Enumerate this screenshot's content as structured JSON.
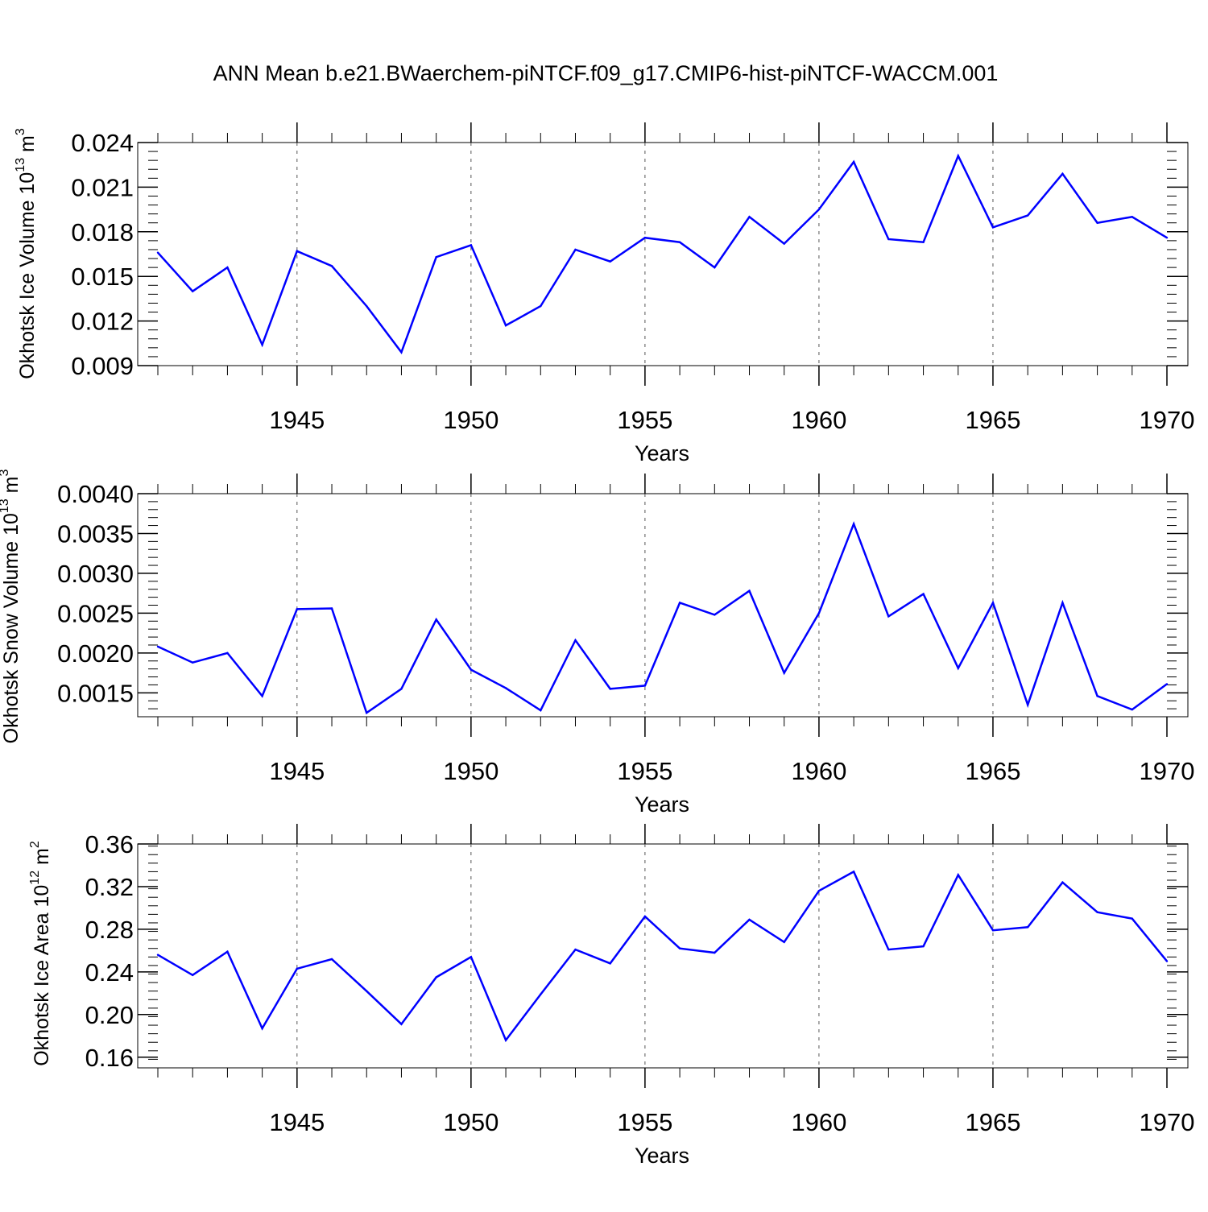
{
  "title": "ANN Mean b.e21.BWaerchem-piNTCF.f09_g17.CMIP6-hist-piNTCF-WACCM.001",
  "line_color": "#0000ff",
  "chart_data": [
    {
      "type": "line",
      "ylabel": {
        "main": "Okhotsk Ice Volume 10",
        "exp": "13",
        "unit": " m",
        "unit_exp": "3"
      },
      "xlabel": "Years",
      "xlim": [
        1941,
        1970
      ],
      "ylim": [
        0.009,
        0.0245
      ],
      "yticks": [
        0.009,
        0.012,
        0.015,
        0.018,
        0.021,
        0.024
      ],
      "ytick_labels": [
        "0.009",
        "0.012",
        "0.015",
        "0.018",
        "0.021",
        "0.024"
      ],
      "xticks": [
        1945,
        1950,
        1955,
        1960,
        1965,
        1970
      ],
      "xtick_labels": [
        "1945",
        "1950",
        "1955",
        "1960",
        "1965",
        "1970"
      ],
      "grid": "dashed vertical at major x ticks",
      "x": [
        1941,
        1942,
        1943,
        1944,
        1945,
        1946,
        1947,
        1948,
        1949,
        1950,
        1951,
        1952,
        1953,
        1954,
        1955,
        1956,
        1957,
        1958,
        1959,
        1960,
        1961,
        1962,
        1963,
        1964,
        1965,
        1966,
        1967,
        1968,
        1969,
        1970
      ],
      "values": [
        0.0166,
        0.014,
        0.0156,
        0.0104,
        0.0167,
        0.0157,
        0.013,
        0.0099,
        0.0163,
        0.0171,
        0.0117,
        0.013,
        0.0168,
        0.016,
        0.0176,
        0.0173,
        0.0156,
        0.019,
        0.0172,
        0.0195,
        0.0227,
        0.0175,
        0.0173,
        0.0231,
        0.0183,
        0.0191,
        0.0219,
        0.0186,
        0.019,
        0.0176
      ]
    },
    {
      "type": "line",
      "ylabel": {
        "main": "Okhotsk Snow Volume 10",
        "exp": "13",
        "unit": " m",
        "unit_exp": "3"
      },
      "xlabel": "Years",
      "xlim": [
        1941,
        1970
      ],
      "ylim": [
        0.0012,
        0.004
      ],
      "yticks": [
        0.0015,
        0.002,
        0.0025,
        0.003,
        0.0035,
        0.004
      ],
      "ytick_labels": [
        "0.0015",
        "0.0020",
        "0.0025",
        "0.0030",
        "0.0035",
        "0.0040"
      ],
      "xticks": [
        1945,
        1950,
        1955,
        1960,
        1965,
        1970
      ],
      "xtick_labels": [
        "1945",
        "1950",
        "1955",
        "1960",
        "1965",
        "1970"
      ],
      "grid": "dashed vertical at major x ticks",
      "x": [
        1941,
        1942,
        1943,
        1944,
        1945,
        1946,
        1947,
        1948,
        1949,
        1950,
        1951,
        1952,
        1953,
        1954,
        1955,
        1956,
        1957,
        1958,
        1959,
        1960,
        1961,
        1962,
        1963,
        1964,
        1965,
        1966,
        1967,
        1968,
        1969,
        1970
      ],
      "values": [
        0.00208,
        0.00188,
        0.002,
        0.00146,
        0.00255,
        0.00256,
        0.00125,
        0.00155,
        0.00242,
        0.00179,
        0.00156,
        0.00128,
        0.00216,
        0.00155,
        0.00159,
        0.00263,
        0.00248,
        0.00278,
        0.00175,
        0.0025,
        0.00362,
        0.00246,
        0.00274,
        0.00181,
        0.00263,
        0.00135,
        0.00263,
        0.00146,
        0.00129,
        0.00161
      ]
    },
    {
      "type": "line",
      "ylabel": {
        "main": "Okhotsk Ice Area 10",
        "exp": "12",
        "unit": " m",
        "unit_exp": "2"
      },
      "xlabel": "Years",
      "xlim": [
        1941,
        1970
      ],
      "ylim": [
        0.15,
        0.36
      ],
      "yticks": [
        0.16,
        0.2,
        0.24,
        0.28,
        0.32,
        0.36
      ],
      "ytick_labels": [
        "0.16",
        "0.20",
        "0.24",
        "0.28",
        "0.32",
        "0.36"
      ],
      "xticks": [
        1945,
        1950,
        1955,
        1960,
        1965,
        1970
      ],
      "xtick_labels": [
        "1945",
        "1950",
        "1955",
        "1960",
        "1965",
        "1970"
      ],
      "grid": "dashed vertical at major x ticks",
      "x": [
        1941,
        1942,
        1943,
        1944,
        1945,
        1946,
        1947,
        1948,
        1949,
        1950,
        1951,
        1952,
        1953,
        1954,
        1955,
        1956,
        1957,
        1958,
        1959,
        1960,
        1961,
        1962,
        1963,
        1964,
        1965,
        1966,
        1967,
        1968,
        1969,
        1970
      ],
      "values": [
        0.256,
        0.237,
        0.259,
        0.187,
        0.243,
        0.252,
        0.222,
        0.191,
        0.235,
        0.254,
        0.176,
        0.219,
        0.261,
        0.248,
        0.292,
        0.262,
        0.258,
        0.289,
        0.268,
        0.316,
        0.334,
        0.261,
        0.264,
        0.331,
        0.279,
        0.282,
        0.324,
        0.296,
        0.29,
        0.25
      ]
    }
  ]
}
